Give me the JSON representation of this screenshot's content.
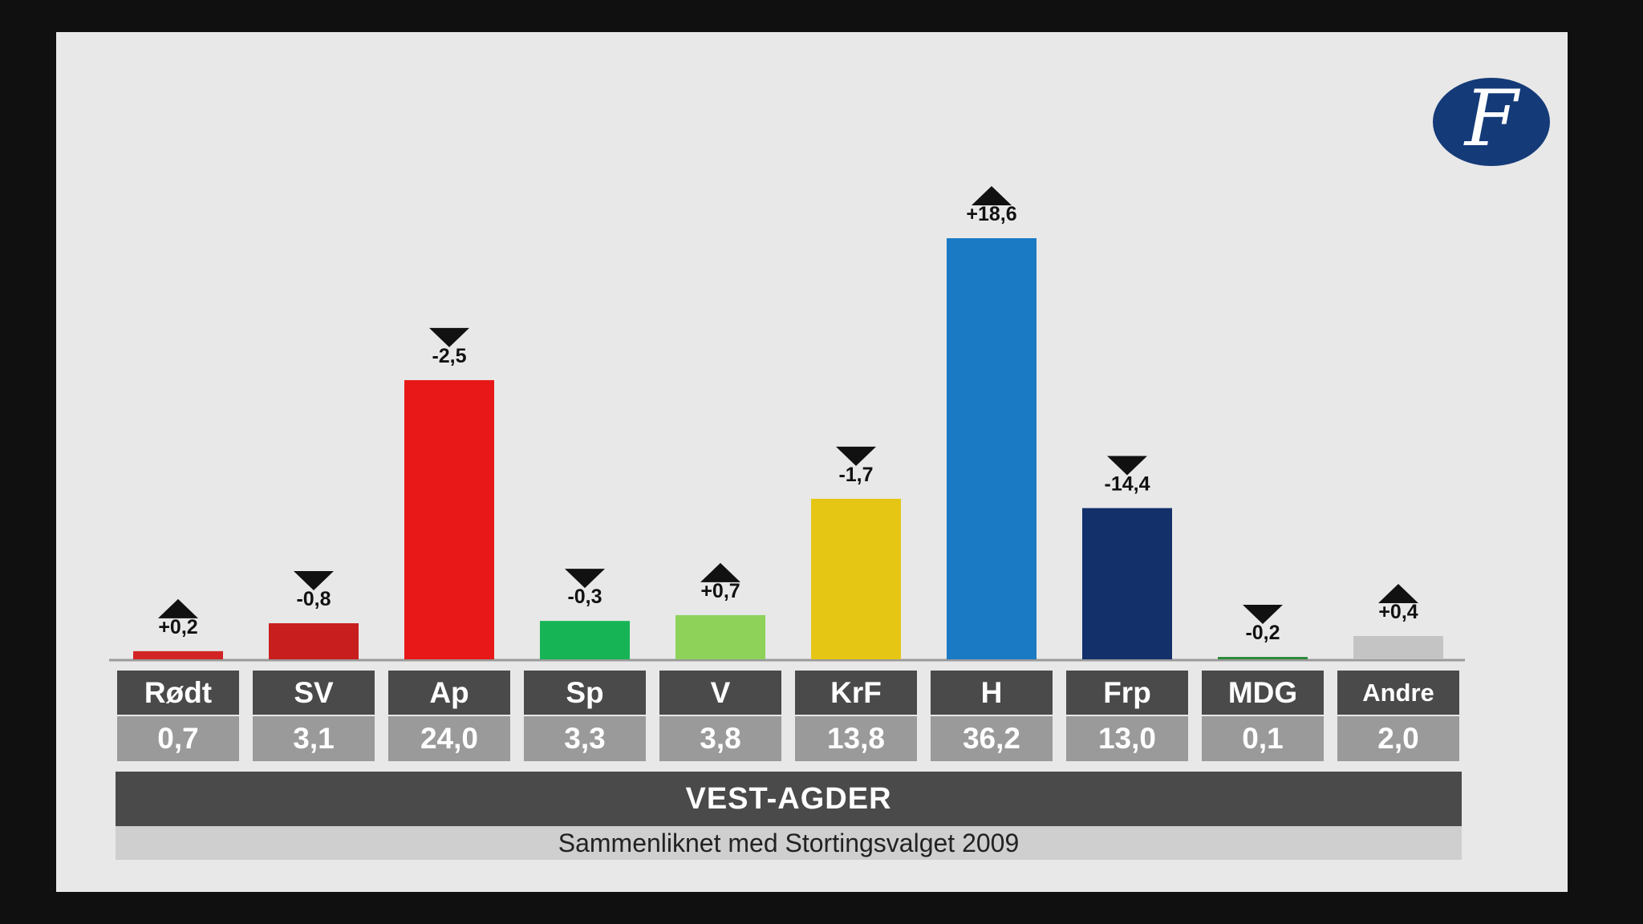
{
  "logo": {
    "glyph": "F",
    "name": "newspaper-logo"
  },
  "chart_data": {
    "type": "bar",
    "categories": [
      "Rødt",
      "SV",
      "Ap",
      "Sp",
      "V",
      "KrF",
      "H",
      "Frp",
      "MDG",
      "Andre"
    ],
    "values": [
      0.7,
      3.1,
      24.0,
      3.3,
      3.8,
      13.8,
      36.2,
      13.0,
      0.1,
      2.0
    ],
    "value_labels": [
      "0,7",
      "3,1",
      "24,0",
      "3,3",
      "3,8",
      "13,8",
      "36,2",
      "13,0",
      "0,1",
      "2,0"
    ],
    "changes": [
      0.2,
      -0.8,
      -2.5,
      -0.3,
      0.7,
      -1.7,
      18.6,
      -14.4,
      -0.2,
      0.4
    ],
    "change_labels": [
      "+0,2",
      "-0,8",
      "-2,5",
      "-0,3",
      "+0,7",
      "-1,7",
      "+18,6",
      "-14,4",
      "-0,2",
      "+0,4"
    ],
    "colors": [
      "#d22424",
      "#c81e1e",
      "#e81818",
      "#16b455",
      "#8ed25a",
      "#e6c614",
      "#1a7ac4",
      "#13306a",
      "#2e8b3a",
      "#c4c4c4"
    ],
    "region": "VEST-AGDER",
    "subtitle": "Sammenliknet med Stortingsvalget 2009",
    "ylim": [
      0,
      36.2
    ],
    "grid": false
  }
}
